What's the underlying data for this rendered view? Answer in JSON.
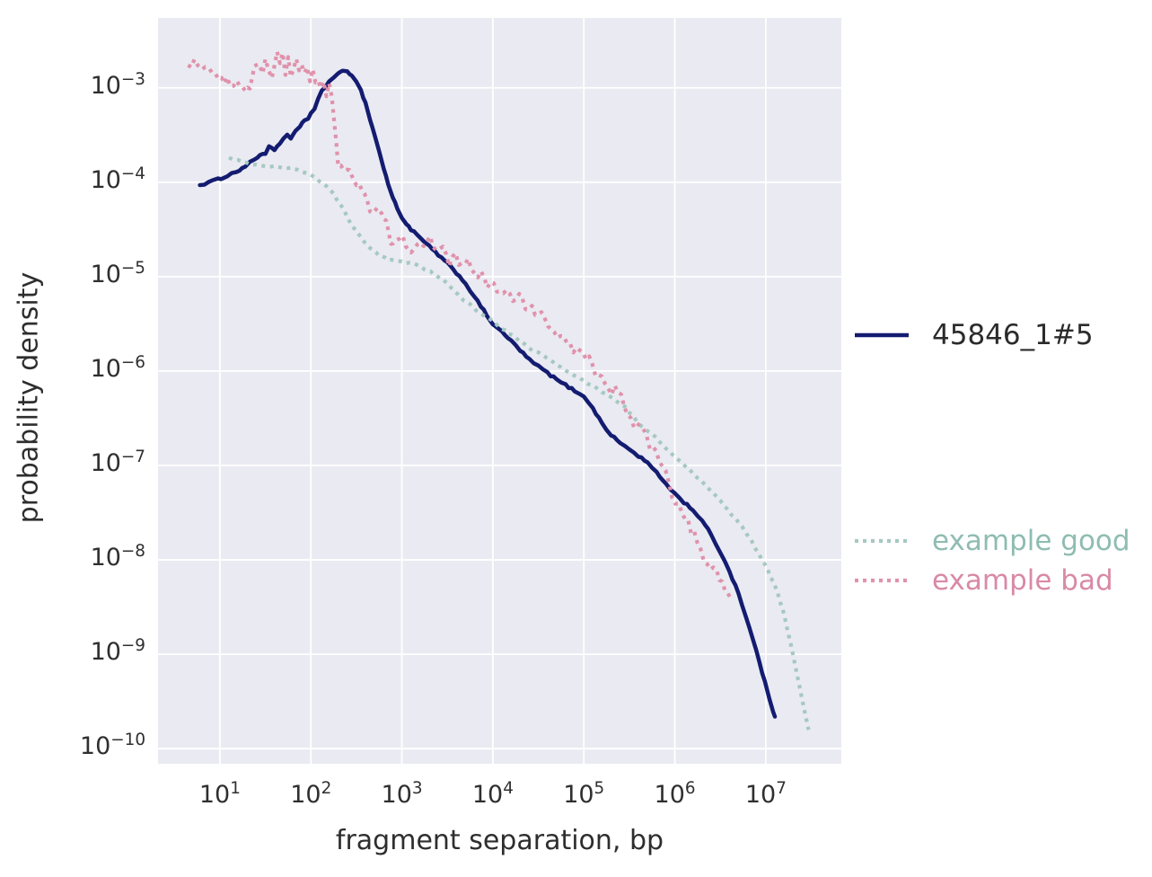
{
  "chart_data": {
    "type": "line",
    "title": "",
    "xlabel": "fragment separation, bp",
    "ylabel": "probability density",
    "x_scale": "log",
    "y_scale": "log",
    "xlim_log10": [
      0.32,
      7.83
    ],
    "ylim_log10": [
      -10.16,
      -2.26
    ],
    "x_tick_exponents": [
      1,
      2,
      3,
      4,
      5,
      6,
      7
    ],
    "y_tick_exponents": [
      -3,
      -4,
      -5,
      -6,
      -7,
      -8,
      -9,
      -10
    ],
    "grid": true,
    "plot_bg_color": "#eaeaf2",
    "grid_color": "#ffffff",
    "tick_text_color": "#2f2f2f",
    "legend_position": "right",
    "series": [
      {
        "name": "45846_1#5",
        "color": "#131c70",
        "style": "solid",
        "width": 4.5,
        "jitter": 0.012,
        "points_log10": [
          [
            0.78,
            -4.03
          ],
          [
            0.88,
            -4.0
          ],
          [
            0.98,
            -3.97
          ],
          [
            1.08,
            -3.93
          ],
          [
            1.18,
            -3.89
          ],
          [
            1.28,
            -3.83
          ],
          [
            1.38,
            -3.76
          ],
          [
            1.44,
            -3.71
          ],
          [
            1.5,
            -3.69
          ],
          [
            1.54,
            -3.63
          ],
          [
            1.6,
            -3.66
          ],
          [
            1.66,
            -3.6
          ],
          [
            1.7,
            -3.53
          ],
          [
            1.74,
            -3.5
          ],
          [
            1.78,
            -3.53
          ],
          [
            1.83,
            -3.46
          ],
          [
            1.88,
            -3.42
          ],
          [
            1.93,
            -3.34
          ],
          [
            1.97,
            -3.32
          ],
          [
            2.0,
            -3.27
          ],
          [
            2.04,
            -3.22
          ],
          [
            2.08,
            -3.12
          ],
          [
            2.12,
            -3.04
          ],
          [
            2.16,
            -2.99
          ],
          [
            2.2,
            -2.93
          ],
          [
            2.25,
            -2.88
          ],
          [
            2.3,
            -2.85
          ],
          [
            2.35,
            -2.83
          ],
          [
            2.4,
            -2.83
          ],
          [
            2.45,
            -2.86
          ],
          [
            2.5,
            -2.93
          ],
          [
            2.55,
            -3.03
          ],
          [
            2.6,
            -3.16
          ],
          [
            2.65,
            -3.33
          ],
          [
            2.7,
            -3.5
          ],
          [
            2.75,
            -3.67
          ],
          [
            2.8,
            -3.85
          ],
          [
            2.85,
            -4.02
          ],
          [
            2.9,
            -4.16
          ],
          [
            2.95,
            -4.28
          ],
          [
            3.0,
            -4.37
          ],
          [
            3.05,
            -4.44
          ],
          [
            3.1,
            -4.5
          ],
          [
            3.2,
            -4.59
          ],
          [
            3.3,
            -4.68
          ],
          [
            3.4,
            -4.77
          ],
          [
            3.5,
            -4.86
          ],
          [
            3.6,
            -4.96
          ],
          [
            3.7,
            -5.07
          ],
          [
            3.8,
            -5.22
          ],
          [
            3.9,
            -5.36
          ],
          [
            4.0,
            -5.5
          ],
          [
            4.1,
            -5.59
          ],
          [
            4.2,
            -5.68
          ],
          [
            4.3,
            -5.78
          ],
          [
            4.4,
            -5.88
          ],
          [
            4.5,
            -5.95
          ],
          [
            4.6,
            -6.02
          ],
          [
            4.7,
            -6.09
          ],
          [
            4.8,
            -6.15
          ],
          [
            4.9,
            -6.21
          ],
          [
            5.0,
            -6.26
          ],
          [
            5.1,
            -6.4
          ],
          [
            5.2,
            -6.55
          ],
          [
            5.3,
            -6.68
          ],
          [
            5.4,
            -6.76
          ],
          [
            5.5,
            -6.83
          ],
          [
            5.6,
            -6.9
          ],
          [
            5.7,
            -6.97
          ],
          [
            5.8,
            -7.08
          ],
          [
            5.9,
            -7.19
          ],
          [
            6.0,
            -7.3
          ],
          [
            6.1,
            -7.39
          ],
          [
            6.2,
            -7.47
          ],
          [
            6.3,
            -7.59
          ],
          [
            6.4,
            -7.73
          ],
          [
            6.5,
            -7.92
          ],
          [
            6.6,
            -8.12
          ],
          [
            6.7,
            -8.35
          ],
          [
            6.78,
            -8.6
          ],
          [
            6.86,
            -8.85
          ],
          [
            6.93,
            -9.08
          ],
          [
            6.99,
            -9.3
          ],
          [
            7.04,
            -9.48
          ],
          [
            7.08,
            -9.6
          ],
          [
            7.1,
            -9.66
          ]
        ]
      },
      {
        "name": "example good",
        "color": "#a5c9c1",
        "style": "dotted",
        "width": 4.2,
        "jitter": 0.01,
        "points_log10": [
          [
            1.1,
            -3.74
          ],
          [
            1.25,
            -3.78
          ],
          [
            1.4,
            -3.82
          ],
          [
            1.55,
            -3.83
          ],
          [
            1.7,
            -3.85
          ],
          [
            1.85,
            -3.86
          ],
          [
            1.95,
            -3.9
          ],
          [
            2.05,
            -3.95
          ],
          [
            2.15,
            -4.03
          ],
          [
            2.25,
            -4.12
          ],
          [
            2.35,
            -4.28
          ],
          [
            2.45,
            -4.45
          ],
          [
            2.55,
            -4.58
          ],
          [
            2.65,
            -4.7
          ],
          [
            2.75,
            -4.78
          ],
          [
            2.85,
            -4.82
          ],
          [
            2.95,
            -4.84
          ],
          [
            3.05,
            -4.85
          ],
          [
            3.15,
            -4.87
          ],
          [
            3.25,
            -4.92
          ],
          [
            3.35,
            -4.97
          ],
          [
            3.45,
            -5.03
          ],
          [
            3.55,
            -5.12
          ],
          [
            3.65,
            -5.22
          ],
          [
            3.75,
            -5.3
          ],
          [
            3.85,
            -5.38
          ],
          [
            3.95,
            -5.44
          ],
          [
            4.1,
            -5.55
          ],
          [
            4.25,
            -5.65
          ],
          [
            4.4,
            -5.76
          ],
          [
            4.55,
            -5.83
          ],
          [
            4.7,
            -5.93
          ],
          [
            4.85,
            -6.03
          ],
          [
            5.0,
            -6.1
          ],
          [
            5.15,
            -6.19
          ],
          [
            5.3,
            -6.27
          ],
          [
            5.45,
            -6.38
          ],
          [
            5.6,
            -6.55
          ],
          [
            5.75,
            -6.67
          ],
          [
            5.9,
            -6.82
          ],
          [
            6.05,
            -6.95
          ],
          [
            6.2,
            -7.08
          ],
          [
            6.35,
            -7.22
          ],
          [
            6.5,
            -7.38
          ],
          [
            6.62,
            -7.52
          ],
          [
            6.74,
            -7.64
          ],
          [
            6.84,
            -7.8
          ],
          [
            6.94,
            -7.97
          ],
          [
            7.03,
            -8.12
          ],
          [
            7.12,
            -8.32
          ],
          [
            7.2,
            -8.58
          ],
          [
            7.28,
            -8.92
          ],
          [
            7.36,
            -9.3
          ],
          [
            7.43,
            -9.62
          ],
          [
            7.47,
            -9.8
          ]
        ]
      },
      {
        "name": "example bad",
        "color": "#e092ab",
        "style": "dotted",
        "width": 4.2,
        "jitter": 0.05,
        "points_log10": [
          [
            0.65,
            -2.76
          ],
          [
            0.72,
            -2.74
          ],
          [
            0.8,
            -2.78
          ],
          [
            0.88,
            -2.76
          ],
          [
            0.95,
            -2.85
          ],
          [
            1.02,
            -2.88
          ],
          [
            1.08,
            -2.93
          ],
          [
            1.15,
            -2.96
          ],
          [
            1.22,
            -2.95
          ],
          [
            1.28,
            -3.02
          ],
          [
            1.33,
            -3.05
          ],
          [
            1.38,
            -2.78
          ],
          [
            1.43,
            -2.72
          ],
          [
            1.47,
            -2.85
          ],
          [
            1.5,
            -2.68
          ],
          [
            1.53,
            -2.8
          ],
          [
            1.57,
            -2.92
          ],
          [
            1.6,
            -2.74
          ],
          [
            1.63,
            -2.65
          ],
          [
            1.66,
            -2.78
          ],
          [
            1.69,
            -2.62
          ],
          [
            1.72,
            -2.85
          ],
          [
            1.75,
            -2.72
          ],
          [
            1.78,
            -2.92
          ],
          [
            1.81,
            -2.78
          ],
          [
            1.84,
            -2.7
          ],
          [
            1.87,
            -2.82
          ],
          [
            1.9,
            -2.75
          ],
          [
            1.93,
            -2.88
          ],
          [
            1.96,
            -2.79
          ],
          [
            1.99,
            -2.9
          ],
          [
            2.02,
            -2.83
          ],
          [
            2.05,
            -2.95
          ],
          [
            2.08,
            -2.88
          ],
          [
            2.11,
            -2.98
          ],
          [
            2.14,
            -2.92
          ],
          [
            2.17,
            -3.05
          ],
          [
            2.2,
            -2.95
          ],
          [
            2.23,
            -3.12
          ],
          [
            2.26,
            -3.35
          ],
          [
            2.28,
            -3.6
          ],
          [
            2.3,
            -3.82
          ],
          [
            2.33,
            -3.8
          ],
          [
            2.36,
            -3.9
          ],
          [
            2.4,
            -3.88
          ],
          [
            2.45,
            -3.95
          ],
          [
            2.5,
            -4.0
          ],
          [
            2.56,
            -4.12
          ],
          [
            2.62,
            -4.2
          ],
          [
            2.68,
            -4.33
          ],
          [
            2.73,
            -4.3
          ],
          [
            2.78,
            -4.38
          ],
          [
            2.83,
            -4.45
          ],
          [
            2.88,
            -4.62
          ],
          [
            2.93,
            -4.65
          ],
          [
            2.98,
            -4.58
          ],
          [
            3.04,
            -4.64
          ],
          [
            3.1,
            -4.72
          ],
          [
            3.17,
            -4.66
          ],
          [
            3.24,
            -4.7
          ],
          [
            3.31,
            -4.6
          ],
          [
            3.38,
            -4.75
          ],
          [
            3.45,
            -4.68
          ],
          [
            3.52,
            -4.85
          ],
          [
            3.59,
            -4.76
          ],
          [
            3.66,
            -4.9
          ],
          [
            3.73,
            -4.82
          ],
          [
            3.8,
            -5.0
          ],
          [
            3.87,
            -4.92
          ],
          [
            3.94,
            -5.1
          ],
          [
            4.01,
            -5.05
          ],
          [
            4.08,
            -5.18
          ],
          [
            4.15,
            -5.1
          ],
          [
            4.22,
            -5.25
          ],
          [
            4.29,
            -5.2
          ],
          [
            4.36,
            -5.35
          ],
          [
            4.43,
            -5.3
          ],
          [
            4.5,
            -5.42
          ],
          [
            4.57,
            -5.4
          ],
          [
            4.64,
            -5.55
          ],
          [
            4.71,
            -5.6
          ],
          [
            4.78,
            -5.68
          ],
          [
            4.85,
            -5.75
          ],
          [
            4.92,
            -5.8
          ],
          [
            4.99,
            -5.78
          ],
          [
            5.06,
            -5.88
          ],
          [
            5.13,
            -6.05
          ],
          [
            5.2,
            -6.1
          ],
          [
            5.27,
            -6.22
          ],
          [
            5.34,
            -6.2
          ],
          [
            5.41,
            -6.28
          ],
          [
            5.48,
            -6.45
          ],
          [
            5.55,
            -6.55
          ],
          [
            5.62,
            -6.62
          ],
          [
            5.69,
            -6.7
          ],
          [
            5.76,
            -6.85
          ],
          [
            5.83,
            -6.92
          ],
          [
            5.9,
            -7.1
          ],
          [
            5.97,
            -7.3
          ],
          [
            6.04,
            -7.45
          ],
          [
            6.11,
            -7.55
          ],
          [
            6.18,
            -7.68
          ],
          [
            6.25,
            -7.82
          ],
          [
            6.32,
            -8.0
          ],
          [
            6.39,
            -8.1
          ],
          [
            6.46,
            -8.15
          ],
          [
            6.52,
            -8.25
          ],
          [
            6.58,
            -8.38
          ],
          [
            6.62,
            -8.42
          ]
        ]
      }
    ],
    "legends": [
      {
        "entries": [
          {
            "label": "45846_1#5",
            "series_index": 0,
            "text_color": "#2b2b2b"
          }
        ]
      },
      {
        "entries": [
          {
            "label": "example good",
            "series_index": 1,
            "text_color": "#8fbcb2"
          },
          {
            "label": "example bad",
            "series_index": 2,
            "text_color": "#d88aa6"
          }
        ]
      }
    ]
  }
}
